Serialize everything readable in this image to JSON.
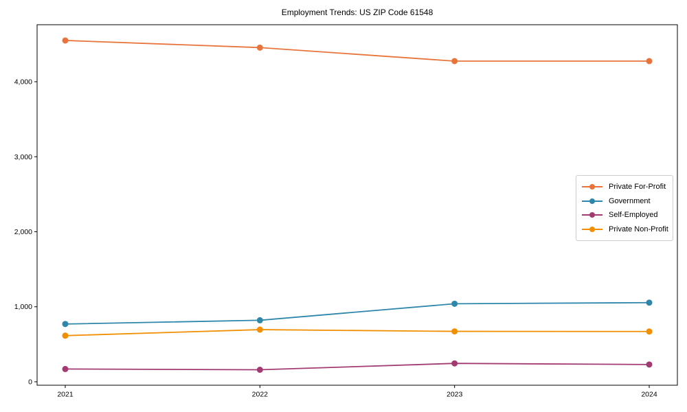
{
  "chart_data": {
    "type": "line",
    "title": "Employment Trends: US ZIP Code 61548",
    "x": [
      "2021",
      "2022",
      "2023",
      "2024"
    ],
    "y_ticks": [
      0,
      1000,
      2000,
      3000,
      4000
    ],
    "y_tick_labels": [
      "0",
      "1,000",
      "2,000",
      "3,000",
      "4,000"
    ],
    "ylim": [
      -46,
      4760
    ],
    "grid": false,
    "legend_position": "center-right",
    "series": [
      {
        "name": "Private For-Profit",
        "color": "#E8743B",
        "values": [
          4550,
          4455,
          4275,
          4275
        ]
      },
      {
        "name": "Government",
        "color": "#2E86AB",
        "values": [
          770,
          820,
          1040,
          1055
        ]
      },
      {
        "name": "Self-Employed",
        "color": "#A23B72",
        "values": [
          170,
          160,
          245,
          230
        ]
      },
      {
        "name": "Private Non-Profit",
        "color": "#F18F01",
        "values": [
          615,
          695,
          672,
          670
        ]
      }
    ]
  }
}
